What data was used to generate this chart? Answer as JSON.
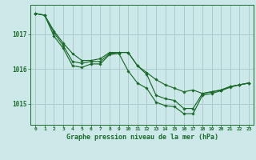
{
  "background_color": "#cce8e8",
  "grid_color": "#aacccc",
  "line_color": "#1a6b2a",
  "title": "Graphe pression niveau de la mer (hPa)",
  "xlim": [
    -0.5,
    23.5
  ],
  "ylim": [
    1014.4,
    1017.85
  ],
  "yticks": [
    1015,
    1016,
    1017
  ],
  "xticks": [
    0,
    1,
    2,
    3,
    4,
    5,
    6,
    7,
    8,
    9,
    10,
    11,
    12,
    13,
    14,
    15,
    16,
    17,
    18,
    19,
    20,
    21,
    22,
    23
  ],
  "series": [
    [
      1017.6,
      1017.55,
      1017.1,
      1016.75,
      1016.45,
      1016.25,
      1016.25,
      1016.3,
      1016.48,
      1016.48,
      1016.48,
      1016.1,
      1015.9,
      1015.7,
      1015.55,
      1015.45,
      1015.35,
      1015.4,
      1015.3,
      1015.35,
      1015.4,
      1015.5,
      1015.55,
      1015.6
    ],
    [
      1017.6,
      1017.55,
      1017.05,
      1016.68,
      1016.22,
      1016.17,
      1016.22,
      1016.22,
      1016.45,
      1016.48,
      1016.48,
      1016.1,
      1015.85,
      1015.25,
      1015.15,
      1015.1,
      1014.87,
      1014.87,
      1015.3,
      1015.35,
      1015.4,
      1015.5,
      1015.55,
      1015.6
    ],
    [
      1017.6,
      1017.55,
      1016.95,
      1016.6,
      1016.1,
      1016.05,
      1016.15,
      1016.15,
      1016.42,
      1016.45,
      1015.95,
      1015.6,
      1015.45,
      1015.05,
      1014.95,
      1014.92,
      1014.72,
      1014.72,
      1015.25,
      1015.3,
      1015.38,
      1015.48,
      1015.55,
      1015.6
    ]
  ]
}
